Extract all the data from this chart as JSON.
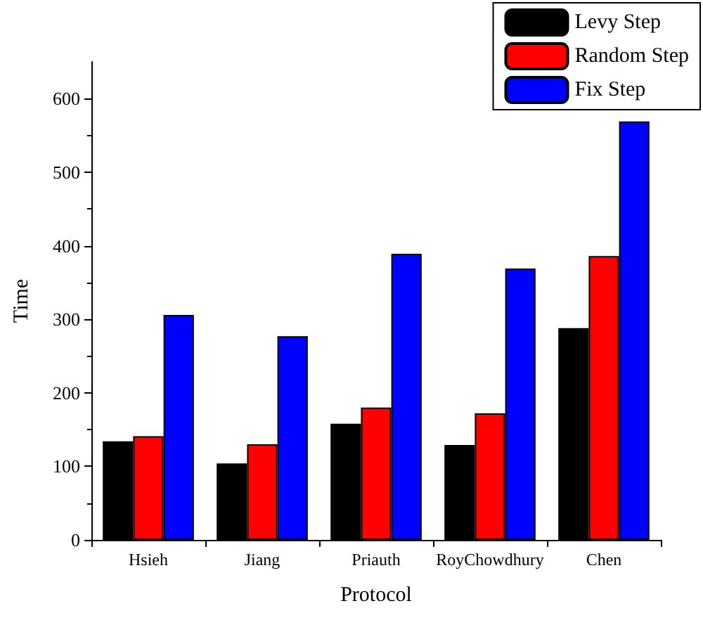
{
  "chart_data": {
    "type": "bar",
    "xlabel": "Protocol",
    "ylabel": "Time",
    "categories": [
      "Hsieh",
      "Jiang",
      "Priauth",
      "RoyChowdhury",
      "Chen"
    ],
    "series": [
      {
        "name": "Levy Step",
        "color": "#000000",
        "values": [
          134,
          104,
          158,
          129,
          288
        ]
      },
      {
        "name": "Random Step",
        "color": "#ff0000",
        "values": [
          141,
          130,
          180,
          172,
          386
        ]
      },
      {
        "name": "Fix Step",
        "color": "#0000ff",
        "values": [
          306,
          277,
          389,
          369,
          569
        ]
      }
    ],
    "ylim": [
      0,
      650
    ],
    "yticks": [
      0,
      100,
      200,
      300,
      400,
      500,
      600
    ],
    "grid": false,
    "legend": "top right"
  }
}
